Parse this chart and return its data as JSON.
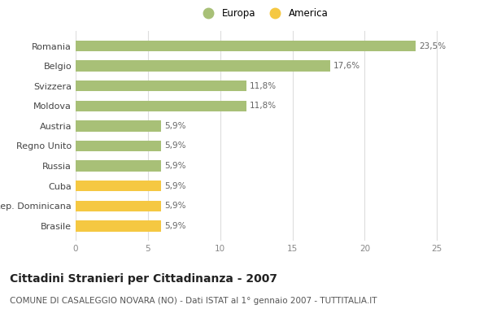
{
  "categories": [
    "Romania",
    "Belgio",
    "Svizzera",
    "Moldova",
    "Austria",
    "Regno Unito",
    "Russia",
    "Cuba",
    "Rep. Dominicana",
    "Brasile"
  ],
  "values": [
    23.5,
    17.6,
    11.8,
    11.8,
    5.9,
    5.9,
    5.9,
    5.9,
    5.9,
    5.9
  ],
  "labels": [
    "23,5%",
    "17,6%",
    "11,8%",
    "11,8%",
    "5,9%",
    "5,9%",
    "5,9%",
    "5,9%",
    "5,9%",
    "5,9%"
  ],
  "colors": [
    "#a8c077",
    "#a8c077",
    "#a8c077",
    "#a8c077",
    "#a8c077",
    "#a8c077",
    "#a8c077",
    "#f5c842",
    "#f5c842",
    "#f5c842"
  ],
  "europa_color": "#a8c077",
  "america_color": "#f5c842",
  "legend_europa": "Europa",
  "legend_america": "America",
  "xlim": [
    0,
    26
  ],
  "xticks": [
    0,
    5,
    10,
    15,
    20,
    25
  ],
  "title": "Cittadini Stranieri per Cittadinanza - 2007",
  "subtitle": "COMUNE DI CASALEGGIO NOVARA (NO) - Dati ISTAT al 1° gennaio 2007 - TUTTITALIA.IT",
  "title_fontsize": 10,
  "subtitle_fontsize": 7.5,
  "bar_height": 0.55,
  "background_color": "#ffffff",
  "grid_color": "#dddddd",
  "label_fontsize": 7.5,
  "tick_fontsize": 7.5,
  "category_fontsize": 8
}
